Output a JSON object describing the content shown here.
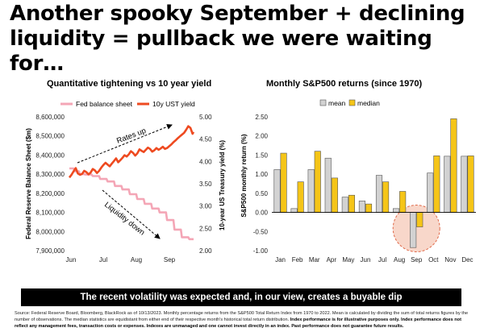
{
  "headline": "Another spooky September + declining liquidity = pullback we were waiting for…",
  "banner": "The recent volatility was expected and, in our view, creates a buyable dip",
  "footnote_plain": "Source: Federal Reserve Board, Bloomberg, BlackRock as of 10/13/2023. Monthly percentage returns from the S&P500 Total Return Index from 1970 to 2022. Mean is calculated by dividing the sum of total returns figures by the number of observations. The median statistics are equidistant from either end of their respective month's historical total return distribution.",
  "footnote_bold": "Index performance is for illustrative purposes only. Index performance does not reflect any management fees, transaction costs or expenses. Indexes are unmanaged and one cannot invest directly in an index. Past performance does not guarantee future results.",
  "colors": {
    "fed": "#f4a6b6",
    "ust": "#ee4a20",
    "mean": "#d2d2d2",
    "median": "#f5c518",
    "highlight": "#f6c9b8"
  },
  "chart_data": [
    {
      "type": "line",
      "title": "Quantitative tightening vs 10 year yield",
      "ylabel": "Federal Reserve Balance Sheet ($m)",
      "y2label": "10-year US Treasury yield (%)",
      "x_ticks": [
        "Jun",
        "Jul",
        "Aug",
        "Sep"
      ],
      "x_range": [
        0,
        117
      ],
      "ylim": [
        7900000,
        8600000
      ],
      "y_ticks": [
        "8,600,000",
        "8,500,000",
        "8,400,000",
        "8,300,000",
        "8,200,000",
        "8,100,000",
        "8,000,000",
        "7,900,000"
      ],
      "y2lim": [
        2.0,
        5.0
      ],
      "y2_ticks": [
        "5.00",
        "4.50",
        "4.00",
        "3.50",
        "3.00",
        "2.50",
        "2.00"
      ],
      "legend": "top",
      "annotations": [
        "Rates up",
        "Liquidity down"
      ],
      "series": [
        {
          "name": "Fed balance sheet",
          "axis": "left",
          "x": [
            0,
            4,
            5,
            9,
            10,
            14,
            15,
            21,
            22,
            28,
            29,
            35,
            36,
            42,
            43,
            49,
            50,
            56,
            57,
            63,
            64,
            70,
            71,
            77,
            78,
            84,
            85,
            91,
            92,
            98,
            99,
            105,
            106,
            112,
            113,
            117
          ],
          "values": [
            8330000,
            8330000,
            8315000,
            8315000,
            8300000,
            8300000,
            8298000,
            8298000,
            8290000,
            8290000,
            8275000,
            8275000,
            8262000,
            8262000,
            8238000,
            8238000,
            8220000,
            8220000,
            8195000,
            8195000,
            8170000,
            8170000,
            8145000,
            8145000,
            8120000,
            8120000,
            8100000,
            8100000,
            8060000,
            8060000,
            8010000,
            8010000,
            7970000,
            7970000,
            7960000,
            7960000
          ]
        },
        {
          "name": "10y UST yield",
          "axis": "right",
          "x": [
            0,
            2,
            4,
            6,
            8,
            10,
            12,
            14,
            16,
            18,
            20,
            22,
            24,
            26,
            28,
            30,
            32,
            34,
            36,
            38,
            40,
            42,
            44,
            46,
            48,
            50,
            52,
            54,
            56,
            58,
            60,
            62,
            64,
            66,
            68,
            70,
            72,
            74,
            76,
            78,
            80,
            82,
            84,
            86,
            88,
            90,
            92,
            94,
            96,
            98,
            100,
            102,
            104,
            106,
            108,
            110,
            112,
            114,
            116,
            117
          ],
          "values": [
            3.64,
            3.7,
            3.78,
            3.85,
            3.73,
            3.7,
            3.72,
            3.79,
            3.76,
            3.71,
            3.75,
            3.83,
            3.8,
            3.74,
            3.79,
            3.86,
            3.92,
            3.97,
            3.93,
            3.89,
            3.95,
            4.01,
            4.07,
            3.98,
            4.03,
            4.08,
            4.14,
            4.11,
            4.16,
            4.23,
            4.19,
            4.13,
            4.18,
            4.27,
            4.24,
            4.21,
            4.26,
            4.31,
            4.28,
            4.22,
            4.25,
            4.3,
            4.26,
            4.29,
            4.33,
            4.28,
            4.3,
            4.34,
            4.38,
            4.43,
            4.47,
            4.52,
            4.56,
            4.6,
            4.64,
            4.71,
            4.79,
            4.75,
            4.62,
            4.66
          ]
        }
      ]
    },
    {
      "type": "bar",
      "title": "Monthly S&P500 returns (since 1970)",
      "ylabel": "S&P500 monthly return (%)",
      "categories": [
        "Jan",
        "Feb",
        "Mar",
        "Apr",
        "May",
        "Jun",
        "Jul",
        "Aug",
        "Sep",
        "Oct",
        "Nov",
        "Dec"
      ],
      "ylim": [
        -1.0,
        2.5
      ],
      "y_ticks": [
        "2.50",
        "2.00",
        "1.50",
        "1.00",
        "0.50",
        "0.00",
        "-0.50",
        "-1.00"
      ],
      "legend": "top",
      "highlight_category": "Sep",
      "series": [
        {
          "name": "mean",
          "values": [
            1.12,
            0.1,
            1.12,
            1.42,
            0.4,
            0.3,
            0.97,
            0.1,
            -0.92,
            1.03,
            1.47,
            1.47
          ]
        },
        {
          "name": "median",
          "values": [
            1.55,
            0.8,
            1.6,
            0.9,
            0.45,
            0.22,
            0.8,
            0.55,
            -0.38,
            1.48,
            2.45,
            1.48
          ]
        }
      ]
    }
  ]
}
